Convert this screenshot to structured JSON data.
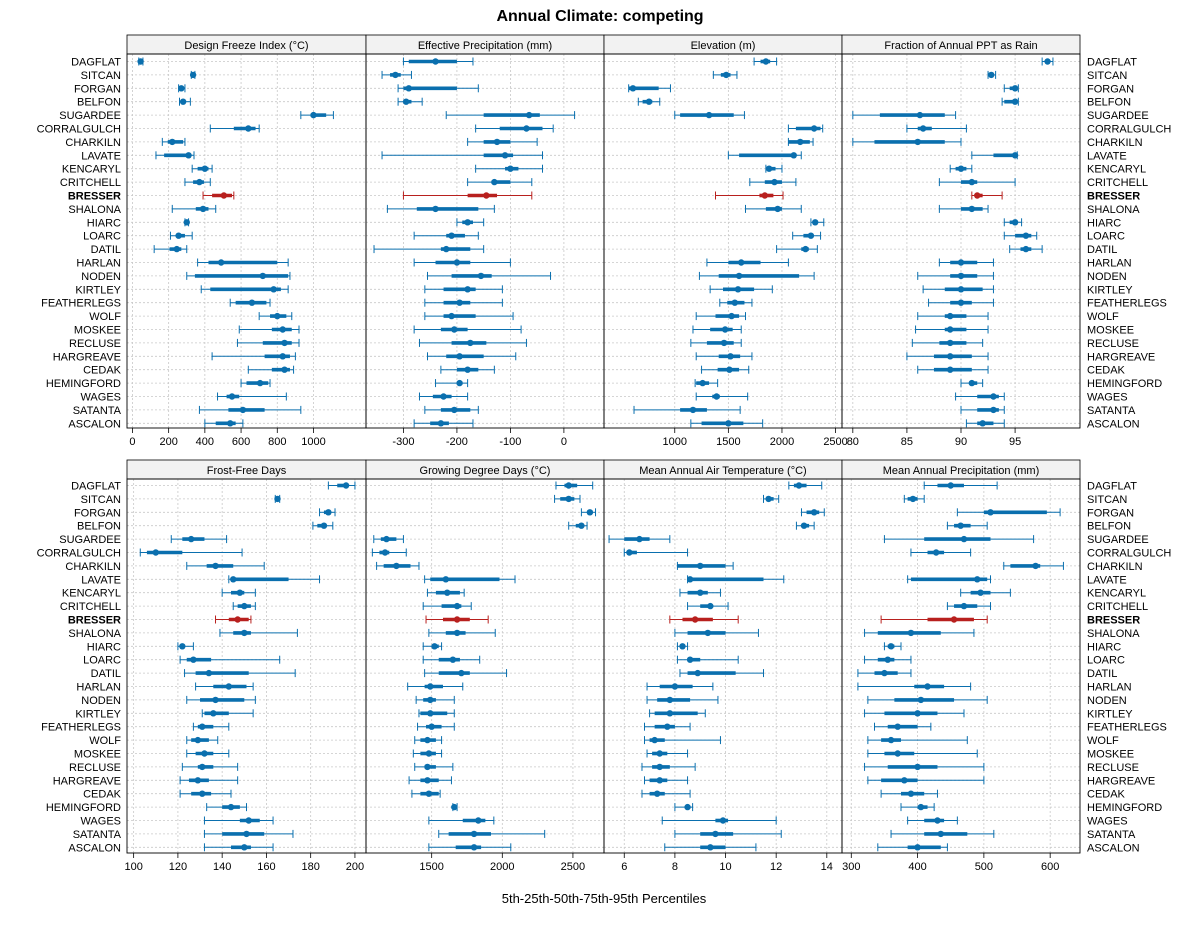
{
  "title": "Annual Climate: competing",
  "xlabel": "5th-25th-50th-75th-95th Percentiles",
  "colors": {
    "normal": "#0a6fae",
    "highlight": "#b8201e"
  },
  "highlight_site": "BRESSER",
  "sites": [
    "DAGFLAT",
    "SITCAN",
    "FORGAN",
    "BELFON",
    "SUGARDEE",
    "CORRALGULCH",
    "CHARKILN",
    "LAVATE",
    "KENCARYL",
    "CRITCHELL",
    "BRESSER",
    "SHALONA",
    "HIARC",
    "LOARC",
    "DATIL",
    "HARLAN",
    "NODEN",
    "KIRTLEY",
    "FEATHERLEGS",
    "WOLF",
    "MOSKEE",
    "RECLUSE",
    "HARGREAVE",
    "CEDAK",
    "HEMINGFORD",
    "WAGES",
    "SATANTA",
    "ASCALON"
  ],
  "chart_data": [
    {
      "type": "box-percentile",
      "title": "Design Freeze Index (°C)",
      "xlim": [
        -30,
        1290
      ],
      "ticks": [
        0,
        200,
        400,
        600,
        800,
        1000
      ],
      "tick_labels": [
        "0",
        "200",
        "400",
        "600",
        "800",
        "1000"
      ],
      "p5": [
        35,
        325,
        255,
        260,
        930,
        430,
        165,
        130,
        330,
        290,
        390,
        220,
        290,
        210,
        120,
        360,
        300,
        380,
        540,
        700,
        590,
        580,
        440,
        640,
        600,
        470,
        370,
        400
      ],
      "p25": [
        42,
        330,
        265,
        270,
        985,
        560,
        195,
        175,
        360,
        335,
        440,
        350,
        295,
        245,
        205,
        420,
        345,
        430,
        570,
        760,
        770,
        720,
        730,
        770,
        630,
        520,
        530,
        460
      ],
      "p50": [
        45,
        335,
        270,
        280,
        1000,
        640,
        220,
        310,
        400,
        370,
        505,
        390,
        300,
        255,
        245,
        490,
        720,
        780,
        660,
        800,
        830,
        840,
        830,
        840,
        705,
        550,
        610,
        540
      ],
      "p75": [
        50,
        340,
        280,
        290,
        1070,
        680,
        280,
        320,
        420,
        395,
        550,
        420,
        305,
        290,
        270,
        800,
        860,
        820,
        740,
        850,
        880,
        880,
        870,
        870,
        750,
        590,
        730,
        570
      ],
      "p95": [
        58,
        345,
        290,
        320,
        1110,
        700,
        290,
        340,
        440,
        430,
        560,
        460,
        310,
        330,
        300,
        860,
        870,
        860,
        760,
        880,
        920,
        920,
        900,
        890,
        760,
        850,
        930,
        610
      ]
    },
    {
      "type": "box-percentile",
      "title": "Effective Precipitation (mm)",
      "xlim": [
        -370,
        75
      ],
      "ticks": [
        -300,
        -200,
        -100,
        0
      ],
      "tick_labels": [
        "-300",
        "-200",
        "-100",
        "0"
      ],
      "p5": [
        -300,
        -340,
        -310,
        -310,
        -220,
        -165,
        -180,
        -340,
        -165,
        -180,
        -300,
        -330,
        -200,
        -280,
        -355,
        -280,
        -255,
        -260,
        -260,
        -260,
        -280,
        -270,
        -255,
        -230,
        -240,
        -270,
        -260,
        -280
      ],
      "p25": [
        -290,
        -325,
        -300,
        -300,
        -150,
        -120,
        -150,
        -150,
        -110,
        -135,
        -180,
        -275,
        -190,
        -220,
        -230,
        -240,
        -210,
        -225,
        -225,
        -225,
        -230,
        -210,
        -220,
        -200,
        -200,
        -245,
        -230,
        -250
      ],
      "p50": [
        -240,
        -315,
        -290,
        -295,
        -65,
        -70,
        -125,
        -110,
        -100,
        -130,
        -145,
        -240,
        -180,
        -210,
        -220,
        -200,
        -155,
        -180,
        -195,
        -210,
        -205,
        -175,
        -195,
        -180,
        -195,
        -225,
        -205,
        -230
      ],
      "p75": [
        -200,
        -305,
        -200,
        -285,
        -45,
        -40,
        -100,
        -95,
        -85,
        -100,
        -125,
        -160,
        -170,
        -185,
        -175,
        -175,
        -135,
        -165,
        -175,
        -165,
        -180,
        -145,
        -150,
        -160,
        -190,
        -210,
        -175,
        -215
      ],
      "p95": [
        -170,
        -285,
        -160,
        -265,
        20,
        -20,
        -50,
        -40,
        -40,
        -60,
        -60,
        -130,
        -150,
        -160,
        -150,
        -100,
        -25,
        -115,
        -115,
        -95,
        -80,
        -70,
        -90,
        -130,
        -180,
        -180,
        -160,
        -170
      ]
    },
    {
      "type": "box-percentile",
      "title": "Elevation (m)",
      "xlim": [
        340,
        2560
      ],
      "ticks": [
        1000,
        1500,
        2000,
        2500
      ],
      "tick_labels": [
        "1000",
        "1500",
        "2000",
        "2500"
      ],
      "p5": [
        1740,
        1360,
        570,
        660,
        1000,
        2060,
        2060,
        1500,
        1850,
        1700,
        1380,
        1660,
        2270,
        2100,
        1950,
        1300,
        1230,
        1330,
        1420,
        1200,
        1170,
        1150,
        1200,
        1250,
        1190,
        1200,
        620,
        1150
      ],
      "p25": [
        1800,
        1430,
        570,
        700,
        1050,
        2130,
        2060,
        1600,
        1860,
        1840,
        1790,
        1850,
        2290,
        2200,
        2180,
        1500,
        1410,
        1450,
        1490,
        1380,
        1330,
        1300,
        1410,
        1400,
        1200,
        1350,
        1050,
        1250
      ],
      "p50": [
        1850,
        1480,
        610,
        760,
        1320,
        2300,
        2170,
        2110,
        1880,
        1930,
        1840,
        1960,
        2310,
        2270,
        2220,
        1620,
        1600,
        1590,
        1560,
        1530,
        1470,
        1460,
        1520,
        1510,
        1260,
        1390,
        1170,
        1500
      ],
      "p75": [
        1890,
        1520,
        850,
        790,
        1550,
        2360,
        2260,
        2130,
        1940,
        2000,
        1920,
        2000,
        2330,
        2290,
        2250,
        1800,
        2160,
        1740,
        1650,
        1600,
        1540,
        1550,
        1610,
        1600,
        1320,
        1420,
        1300,
        1640
      ],
      "p95": [
        1950,
        1580,
        960,
        860,
        1650,
        2380,
        2290,
        2180,
        2000,
        2130,
        2010,
        2180,
        2390,
        2360,
        2330,
        2060,
        2300,
        1910,
        1720,
        1660,
        1620,
        1620,
        1720,
        1690,
        1400,
        1680,
        1610,
        1820
      ]
    },
    {
      "type": "box-percentile",
      "title": "Fraction of Annual PPT as Rain",
      "xlim": [
        79,
        101
      ],
      "ticks": [
        80,
        85,
        90,
        95
      ],
      "tick_labels": [
        "80",
        "85",
        "90",
        "95"
      ],
      "p5": [
        97.5,
        92.5,
        94,
        93.8,
        80,
        85,
        80,
        91,
        89,
        88,
        91,
        88,
        94,
        94,
        94.5,
        88,
        86,
        86.5,
        87,
        86,
        85.8,
        85.5,
        85,
        86,
        90,
        89.5,
        90,
        90.5
      ],
      "p25": [
        97.8,
        92.7,
        94.5,
        94,
        82.5,
        86,
        82,
        93,
        89.5,
        90,
        91.3,
        90,
        94.5,
        95,
        95.5,
        89,
        89,
        88.5,
        89,
        88.5,
        88.5,
        88,
        87.5,
        87.5,
        90.8,
        91.5,
        91.5,
        91.5
      ],
      "p50": [
        98,
        92.8,
        95,
        95,
        86.2,
        86.5,
        86,
        95,
        90,
        91,
        91.5,
        91,
        95,
        96,
        96,
        90,
        90,
        90,
        90,
        89,
        89,
        89,
        89,
        89,
        91,
        93,
        93,
        92
      ],
      "p75": [
        98.2,
        93,
        95.2,
        95.2,
        88.5,
        87.3,
        88.5,
        95.1,
        90.5,
        91.5,
        92,
        92,
        95.2,
        96.5,
        96.5,
        91.5,
        91.5,
        92,
        91,
        90.5,
        90.5,
        90.5,
        91,
        91,
        91.5,
        93.5,
        93.5,
        93
      ],
      "p95": [
        98.5,
        93.2,
        95.3,
        95.3,
        89.5,
        90.5,
        90,
        95.2,
        91,
        95,
        93.8,
        92.5,
        95.6,
        97,
        97.5,
        93,
        93,
        93,
        93,
        92.5,
        92.5,
        92,
        92.5,
        92.5,
        92,
        94,
        94,
        94
      ]
    },
    {
      "type": "box-percentile",
      "title": "Frost-Free Days",
      "xlim": [
        97,
        205
      ],
      "ticks": [
        100,
        120,
        140,
        160,
        180,
        200
      ],
      "tick_labels": [
        "100",
        "120",
        "140",
        "160",
        "180",
        "200"
      ],
      "p5": [
        188,
        164,
        184,
        181,
        117,
        103,
        124,
        143,
        140,
        145,
        137,
        139,
        120,
        121,
        123,
        128,
        124,
        131,
        127,
        124,
        124,
        122,
        121,
        121,
        133,
        132,
        132,
        132
      ],
      "p25": [
        192,
        164.5,
        186,
        183,
        122,
        106,
        133,
        144,
        144,
        147,
        143,
        145,
        121,
        124,
        128,
        136,
        130,
        132,
        129,
        126,
        128,
        129,
        125,
        126,
        140,
        148,
        140,
        144
      ],
      "p50": [
        196,
        165,
        188,
        186,
        126,
        110,
        137,
        145,
        148,
        150,
        147,
        150,
        122,
        127,
        134,
        143,
        137,
        136,
        131,
        129,
        132,
        131,
        129,
        131,
        144,
        152,
        151,
        150
      ],
      "p75": [
        197,
        165.3,
        189,
        187,
        132,
        122,
        145,
        170,
        150,
        153,
        152,
        153,
        123,
        135,
        152,
        151,
        150,
        143,
        136,
        134,
        136,
        136,
        134,
        135,
        148,
        157,
        159,
        153
      ],
      "p95": [
        200,
        166,
        191,
        190,
        142,
        149,
        159,
        184,
        155,
        155,
        153,
        174,
        127,
        166,
        173,
        154,
        155,
        154,
        143,
        138,
        143,
        147,
        147,
        144,
        151,
        163,
        172,
        163
      ]
    },
    {
      "type": "box-percentile",
      "title": "Growing Degree Days (°C)",
      "xlim": [
        1035,
        2720
      ],
      "ticks": [
        1500,
        2000,
        2500
      ],
      "tick_labels": [
        "1500",
        "2000",
        "2500"
      ],
      "p5": [
        2380,
        2370,
        2560,
        2470,
        1090,
        1080,
        1110,
        1450,
        1470,
        1440,
        1460,
        1480,
        1440,
        1440,
        1450,
        1330,
        1390,
        1410,
        1400,
        1380,
        1370,
        1380,
        1340,
        1360,
        1650,
        1480,
        1550,
        1480
      ],
      "p25": [
        2440,
        2410,
        2600,
        2520,
        1140,
        1130,
        1160,
        1490,
        1530,
        1570,
        1580,
        1600,
        1500,
        1550,
        1550,
        1450,
        1440,
        1420,
        1460,
        1420,
        1420,
        1450,
        1420,
        1420,
        1650,
        1720,
        1620,
        1670
      ],
      "p50": [
        2470,
        2470,
        2620,
        2560,
        1180,
        1170,
        1250,
        1600,
        1610,
        1680,
        1680,
        1680,
        1520,
        1650,
        1710,
        1490,
        1490,
        1490,
        1500,
        1470,
        1480,
        1470,
        1470,
        1480,
        1660,
        1830,
        1800,
        1800
      ],
      "p75": [
        2530,
        2510,
        2640,
        2570,
        1250,
        1200,
        1350,
        1980,
        1700,
        1710,
        1770,
        1740,
        1550,
        1700,
        1770,
        1580,
        1530,
        1610,
        1570,
        1530,
        1530,
        1530,
        1550,
        1550,
        1670,
        1880,
        1920,
        1850
      ],
      "p95": [
        2640,
        2550,
        2660,
        2600,
        1300,
        1320,
        1410,
        2090,
        1730,
        1780,
        1900,
        1950,
        1570,
        1840,
        2030,
        1720,
        1660,
        1660,
        1660,
        1570,
        1570,
        1650,
        1640,
        1560,
        1680,
        1940,
        2300,
        2060
      ]
    },
    {
      "type": "box-percentile",
      "title": "Mean Annual Air Temperature (°C)",
      "xlim": [
        5.2,
        14.6
      ],
      "ticks": [
        6,
        8,
        10,
        12,
        14
      ],
      "tick_labels": [
        "6",
        "8",
        "10",
        "12",
        "14"
      ],
      "p5": [
        12.5,
        11.5,
        13,
        12.8,
        5.4,
        6,
        8.1,
        8.5,
        8.2,
        8.5,
        7.8,
        8,
        8.1,
        8.1,
        8.2,
        6.9,
        6.9,
        7,
        6.8,
        6.8,
        6.9,
        6.7,
        6.8,
        6.7,
        8,
        7.5,
        8,
        7.6
      ],
      "p25": [
        12.7,
        11.6,
        13.2,
        13,
        6,
        6.2,
        8.1,
        8.5,
        8.5,
        9,
        8.3,
        8.5,
        8.2,
        8.5,
        8.5,
        7.4,
        7.3,
        7.2,
        7.2,
        7,
        7.1,
        7.1,
        7,
        7,
        8.5,
        9.6,
        9,
        9
      ],
      "p50": [
        12.9,
        11.7,
        13.5,
        13.1,
        6.6,
        6.2,
        9,
        8.6,
        9,
        9.4,
        8.8,
        9.3,
        8.3,
        8.6,
        8.9,
        8,
        7.8,
        7.8,
        7.7,
        7.2,
        7.4,
        7.4,
        7.4,
        7.3,
        8.5,
        9.9,
        9.6,
        9.4
      ],
      "p75": [
        13.2,
        11.9,
        13.7,
        13.3,
        7,
        6.5,
        10,
        11.5,
        9.3,
        9.5,
        9.5,
        10,
        8.4,
        9,
        10.4,
        8.7,
        8.6,
        8.9,
        8,
        7.6,
        7.7,
        7.8,
        7.7,
        7.6,
        8.6,
        10.1,
        10.3,
        10
      ],
      "p95": [
        13.8,
        12.1,
        13.9,
        13.5,
        7.8,
        8.5,
        10.3,
        12.3,
        9.8,
        10.1,
        10.5,
        11.3,
        8.5,
        10.5,
        11.5,
        9.5,
        9.7,
        9.2,
        8.6,
        9.8,
        8.5,
        8.8,
        8.5,
        8.6,
        8.7,
        12,
        12.2,
        11.2
      ]
    },
    {
      "type": "box-percentile",
      "title": "Mean Annual Precipitation (mm)",
      "xlim": [
        286,
        645
      ],
      "ticks": [
        300,
        400,
        500,
        600
      ],
      "tick_labels": [
        "300",
        "400",
        "500",
        "600"
      ],
      "p5": [
        410,
        380,
        460,
        445,
        350,
        390,
        530,
        385,
        465,
        445,
        345,
        320,
        350,
        320,
        310,
        310,
        325,
        320,
        335,
        325,
        325,
        320,
        325,
        345,
        375,
        385,
        360,
        340
      ],
      "p25": [
        430,
        385,
        500,
        455,
        410,
        415,
        540,
        390,
        480,
        455,
        415,
        340,
        355,
        340,
        335,
        395,
        365,
        350,
        355,
        345,
        350,
        355,
        345,
        375,
        400,
        410,
        410,
        385
      ],
      "p50": [
        450,
        393,
        510,
        465,
        470,
        428,
        578,
        490,
        495,
        470,
        455,
        390,
        360,
        355,
        350,
        415,
        405,
        400,
        370,
        360,
        370,
        400,
        380,
        390,
        405,
        430,
        435,
        400
      ],
      "p75": [
        470,
        400,
        595,
        480,
        510,
        440,
        585,
        505,
        510,
        490,
        485,
        435,
        365,
        365,
        370,
        440,
        455,
        430,
        400,
        375,
        395,
        430,
        400,
        410,
        415,
        440,
        475,
        435
      ],
      "p95": [
        520,
        410,
        615,
        505,
        575,
        480,
        620,
        510,
        540,
        510,
        505,
        485,
        375,
        390,
        390,
        480,
        505,
        470,
        420,
        475,
        490,
        500,
        500,
        430,
        425,
        460,
        515,
        445
      ]
    }
  ]
}
